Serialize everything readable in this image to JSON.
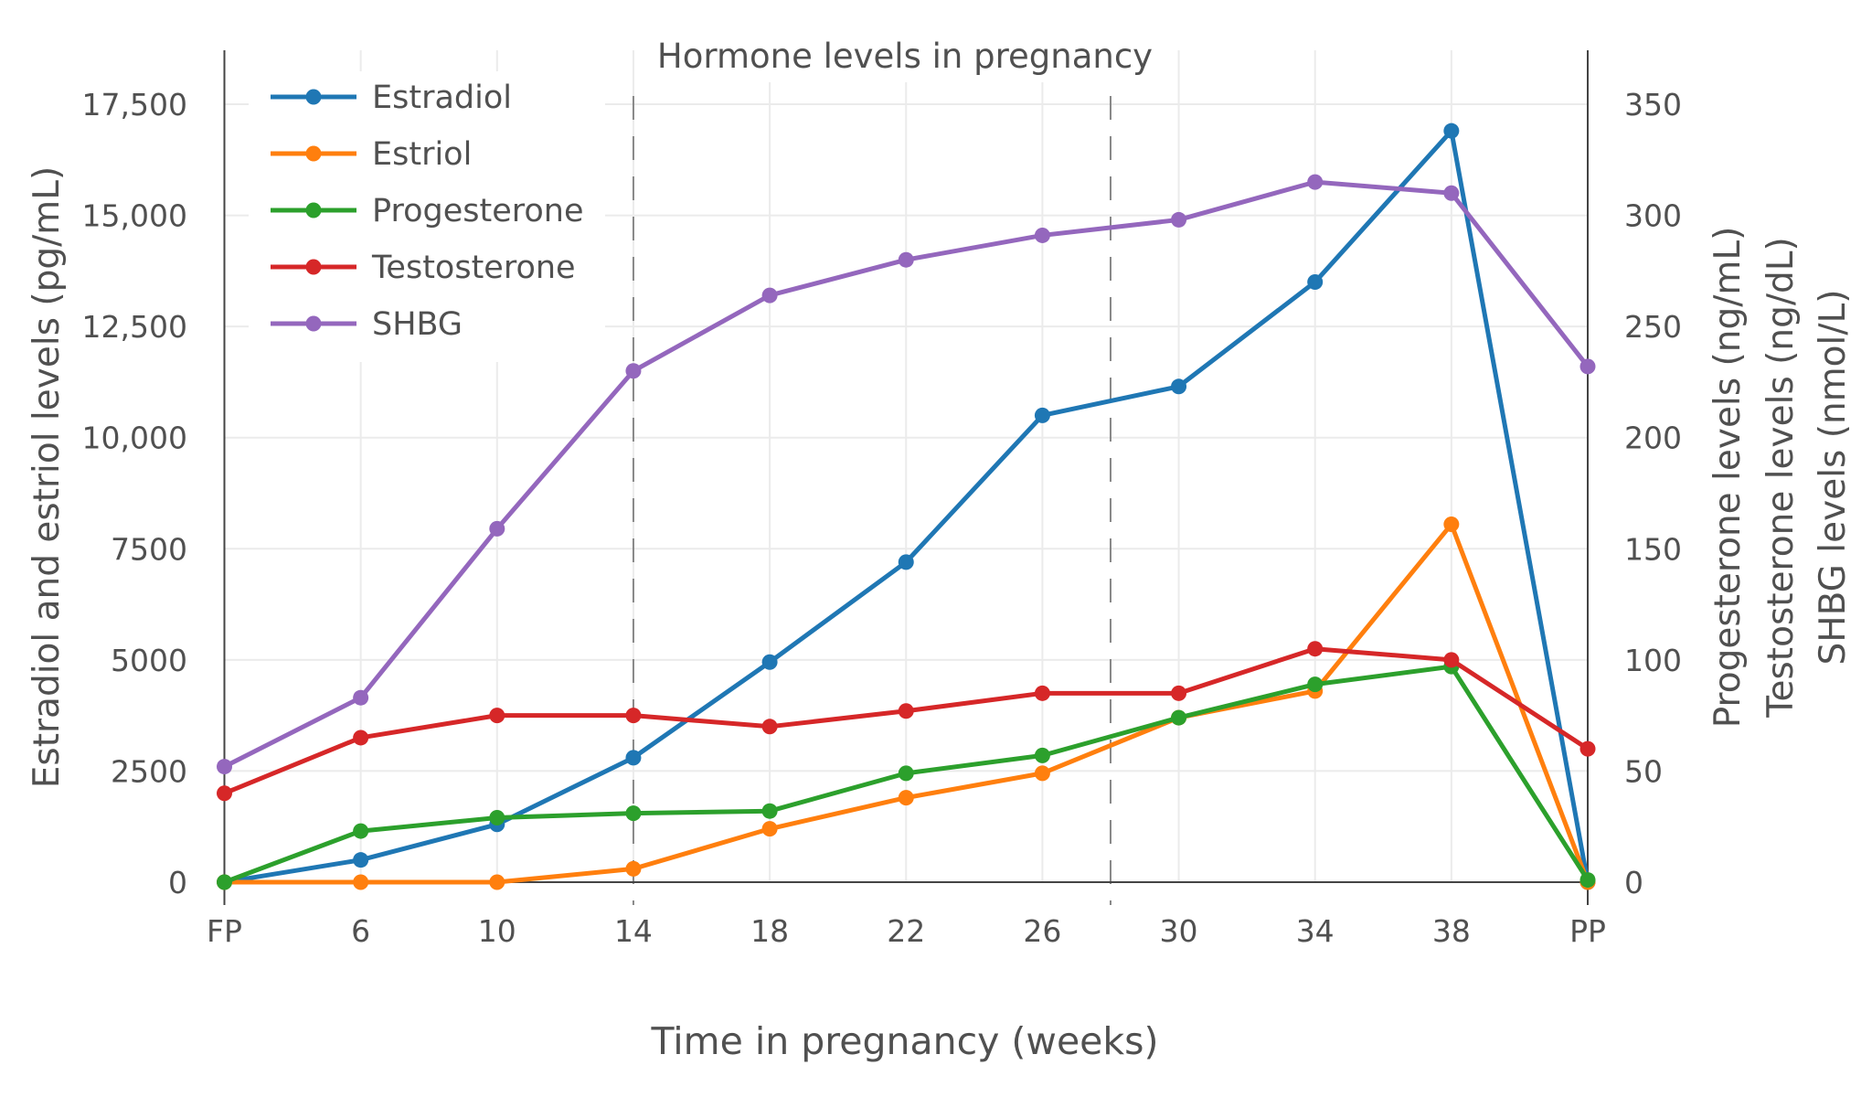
{
  "chart_data": {
    "type": "line",
    "title": "Hormone levels in pregnancy",
    "xlabel": "Time in pregnancy (weeks)",
    "ylabel_left": "Estradiol and estriol levels (pg/mL)",
    "ylabel_right": [
      "Progesterone levels (ng/mL)",
      "Testosterone levels (ng/dL)",
      "SHBG levels (nmol/L)"
    ],
    "categories": [
      "FP",
      "6",
      "10",
      "14",
      "18",
      "22",
      "26",
      "30",
      "34",
      "38",
      "PP"
    ],
    "ylim_left": [
      0,
      17500
    ],
    "ylim_right": [
      0,
      350
    ],
    "yticks_left": [
      "0",
      "2500",
      "5000",
      "7500",
      "10,000",
      "12,500",
      "15,000",
      "17,500"
    ],
    "yticks_right": [
      "0",
      "50",
      "100",
      "150",
      "200",
      "250",
      "300",
      "350"
    ],
    "grid": true,
    "legend": "top-left",
    "dashed_markers_weeks": [
      14,
      28
    ],
    "series": [
      {
        "name": "Estradiol",
        "axis": "left",
        "color": "#1f77b4",
        "values": [
          0,
          500,
          1300,
          2800,
          4950,
          7200,
          10500,
          11150,
          13500,
          16900,
          0
        ]
      },
      {
        "name": "Estriol",
        "axis": "left",
        "color": "#ff7f0e",
        "values": [
          0,
          0,
          0,
          300,
          1200,
          1900,
          2450,
          3700,
          4300,
          8050,
          0
        ]
      },
      {
        "name": "Progesterone",
        "axis": "right",
        "color": "#2ca02c",
        "values": [
          0,
          23,
          29,
          31,
          32,
          49,
          57,
          74,
          89,
          97,
          1
        ]
      },
      {
        "name": "Testosterone",
        "axis": "right",
        "color": "#d62728",
        "values": [
          40,
          65,
          75,
          75,
          70,
          77,
          85,
          85,
          105,
          100,
          60
        ]
      },
      {
        "name": "SHBG",
        "axis": "right",
        "color": "#9467bd",
        "values": [
          52,
          83,
          159,
          230,
          264,
          280,
          291,
          298,
          315,
          310,
          232
        ]
      }
    ]
  }
}
